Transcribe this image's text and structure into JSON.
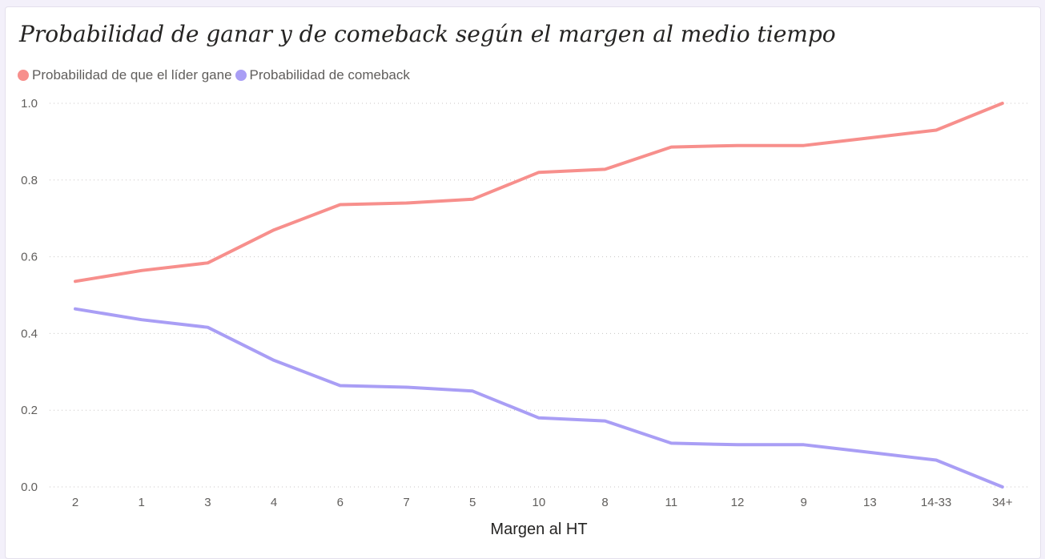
{
  "chart_data": {
    "type": "line",
    "title": "Probabilidad de ganar y de comeback según el margen al medio tiempo",
    "xlabel": "Margen al HT",
    "ylabel": "",
    "categories": [
      "2",
      "1",
      "3",
      "4",
      "6",
      "7",
      "5",
      "10",
      "8",
      "11",
      "12",
      "9",
      "13",
      "14-33",
      "34+"
    ],
    "ylim": [
      0,
      1
    ],
    "yticks": [
      "0.0",
      "0.2",
      "0.4",
      "0.6",
      "0.8",
      "1.0"
    ],
    "ytick_values": [
      0,
      0.2,
      0.4,
      0.6,
      0.8,
      1.0
    ],
    "grid": true,
    "legend_position": "top-left",
    "series": [
      {
        "name": "Probabilidad de que el líder gane",
        "color": "#f78f8c",
        "values": [
          0.536,
          0.564,
          0.584,
          0.67,
          0.736,
          0.74,
          0.75,
          0.82,
          0.828,
          0.886,
          0.89,
          0.89,
          0.91,
          0.93,
          1.0
        ]
      },
      {
        "name": "Probabilidad de comeback",
        "color": "#a99ef5",
        "values": [
          0.464,
          0.436,
          0.416,
          0.33,
          0.264,
          0.26,
          0.25,
          0.18,
          0.172,
          0.114,
          0.11,
          0.11,
          0.09,
          0.07,
          0.0
        ]
      }
    ]
  }
}
